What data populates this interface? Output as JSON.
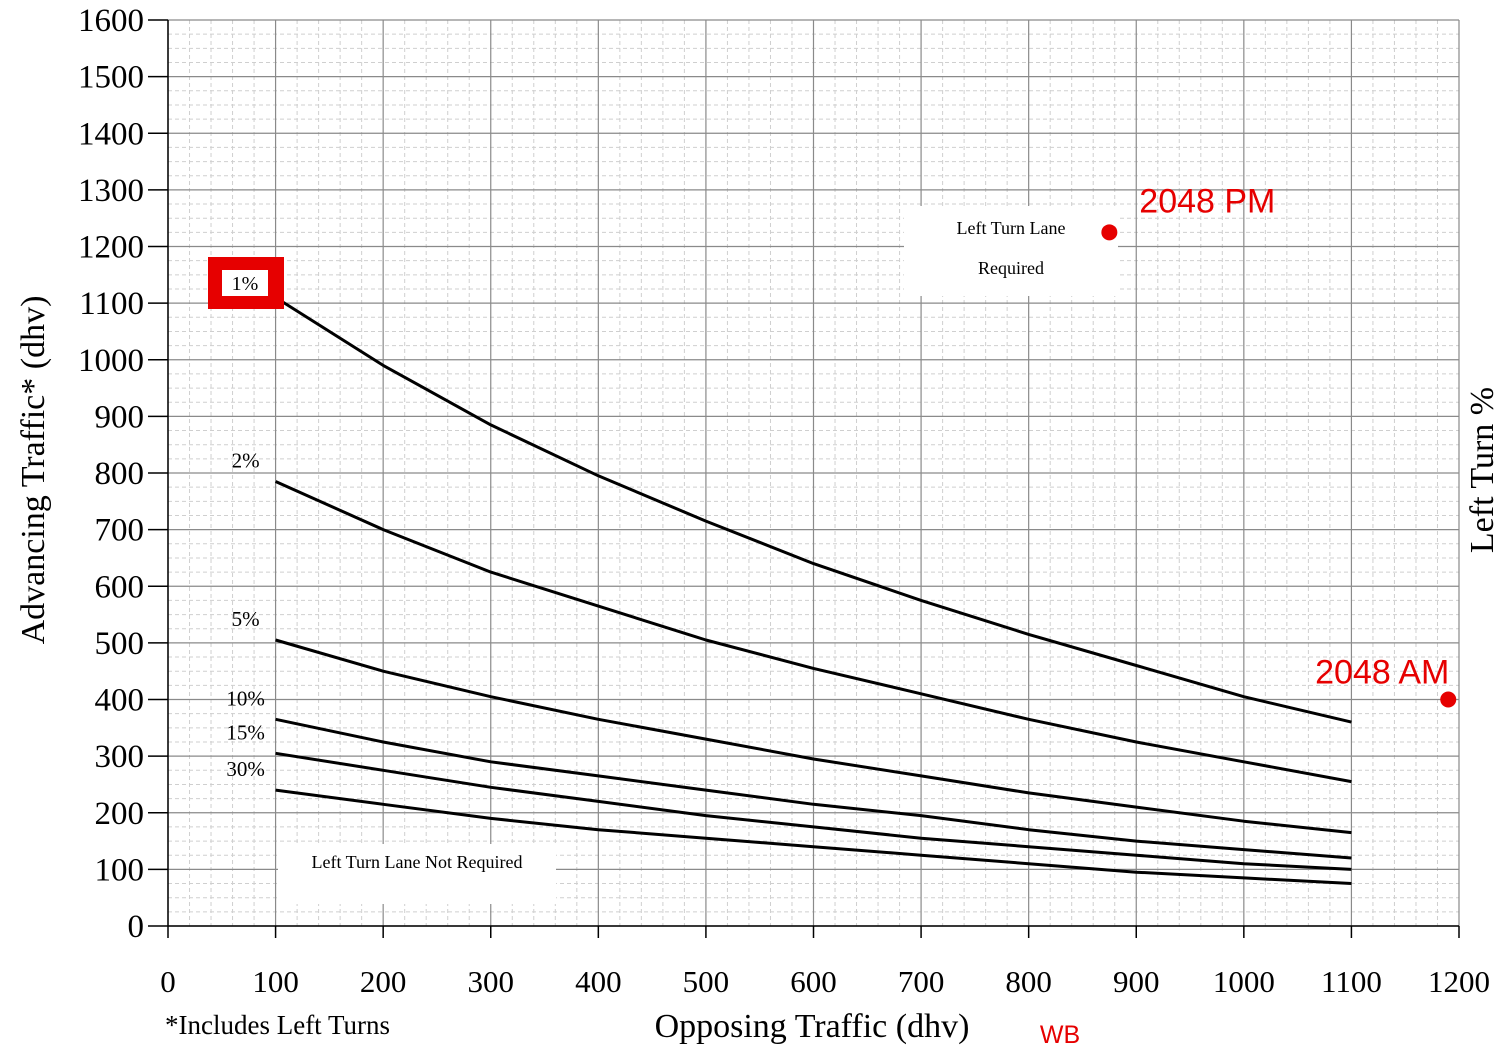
{
  "chart_data": {
    "type": "line",
    "xlabel": "Opposing Traffic (dhv)",
    "ylabel": "Advancing Traffic* (dhv)",
    "right_label": "Left Turn %",
    "footnote": "*Includes Left Turns",
    "xlim": [
      0,
      1200
    ],
    "ylim": [
      0,
      1600
    ],
    "x_ticks": [
      "0",
      "100",
      "200",
      "300",
      "400",
      "500",
      "600",
      "700",
      "800",
      "900",
      "1000",
      "1100",
      "1200"
    ],
    "y_ticks": [
      "0",
      "100",
      "200",
      "300",
      "400",
      "500",
      "600",
      "700",
      "800",
      "900",
      "1000",
      "1100",
      "1200",
      "1300",
      "1400",
      "1500",
      "1600"
    ],
    "grid": true,
    "series": [
      {
        "name": "1%",
        "x": [
          100,
          200,
          300,
          400,
          500,
          600,
          700,
          800,
          900,
          1000,
          1100
        ],
        "values": [
          1110,
          990,
          885,
          795,
          715,
          640,
          575,
          515,
          460,
          405,
          360
        ]
      },
      {
        "name": "2%",
        "x": [
          100,
          200,
          300,
          400,
          500,
          600,
          700,
          800,
          900,
          1000,
          1100
        ],
        "values": [
          785,
          700,
          625,
          565,
          505,
          455,
          410,
          365,
          325,
          290,
          255
        ]
      },
      {
        "name": "5%",
        "x": [
          100,
          200,
          300,
          400,
          500,
          600,
          700,
          800,
          900,
          1000,
          1100
        ],
        "values": [
          505,
          450,
          405,
          365,
          330,
          295,
          265,
          235,
          210,
          185,
          165
        ]
      },
      {
        "name": "10%",
        "x": [
          100,
          200,
          300,
          400,
          500,
          600,
          700,
          800,
          900,
          1000,
          1100
        ],
        "values": [
          365,
          325,
          290,
          265,
          240,
          215,
          195,
          170,
          150,
          135,
          120
        ]
      },
      {
        "name": "15%",
        "x": [
          100,
          200,
          300,
          400,
          500,
          600,
          700,
          800,
          900,
          1000,
          1100
        ],
        "values": [
          305,
          275,
          245,
          220,
          195,
          175,
          155,
          140,
          125,
          110,
          100
        ]
      },
      {
        "name": "30%",
        "x": [
          100,
          200,
          300,
          400,
          500,
          600,
          700,
          800,
          900,
          1000,
          1100
        ],
        "values": [
          240,
          215,
          190,
          170,
          155,
          140,
          125,
          110,
          95,
          85,
          75
        ]
      }
    ],
    "region_labels": {
      "required_line1": "Left Turn Lane",
      "required_line2": "Required",
      "not_required": "Left Turn Lane Not Required"
    },
    "highlight_label": "1%",
    "annotations": [
      {
        "label": "2048 PM",
        "x": 875,
        "y": 1225,
        "color": "#e60000"
      },
      {
        "label": "2048 AM",
        "x": 1190,
        "y": 400,
        "color": "#e60000"
      }
    ],
    "direction_label": "WB",
    "annotation_color": "#e60000"
  }
}
